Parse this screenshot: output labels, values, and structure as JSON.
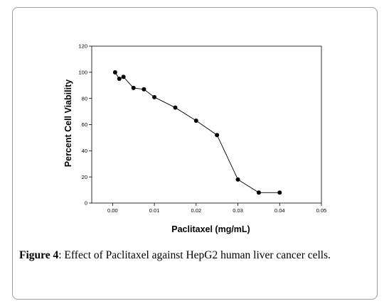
{
  "chart_data": {
    "type": "line",
    "title": "",
    "xlabel": "Paclitaxel (mg/mL)",
    "ylabel": "Percent Cell Viability",
    "xlim": [
      -0.005,
      0.05
    ],
    "ylim": [
      0,
      120
    ],
    "xticks": [
      0.0,
      0.01,
      0.02,
      0.03,
      0.04,
      0.05
    ],
    "xtick_labels": [
      "0.00",
      "0.01",
      "0.02",
      "0.03",
      "0.04",
      "0.05"
    ],
    "yticks": [
      0,
      20,
      40,
      60,
      80,
      100,
      120
    ],
    "ytick_labels": [
      "0",
      "20",
      "40",
      "60",
      "80",
      "100",
      "120"
    ],
    "grid": false,
    "series": [
      {
        "x": [
          0.0006,
          0.0016,
          0.0026,
          0.005,
          0.0075,
          0.01,
          0.015,
          0.02,
          0.025,
          0.03,
          0.035,
          0.04
        ],
        "y": [
          100,
          95,
          96.5,
          88,
          87,
          81,
          73,
          63,
          52,
          18,
          8,
          8
        ],
        "marker": "circle",
        "color": "#000000"
      }
    ]
  },
  "caption": {
    "label": "Figure 4",
    "text": ": Effect of Paclitaxel against HepG2 human liver cancer cells."
  }
}
